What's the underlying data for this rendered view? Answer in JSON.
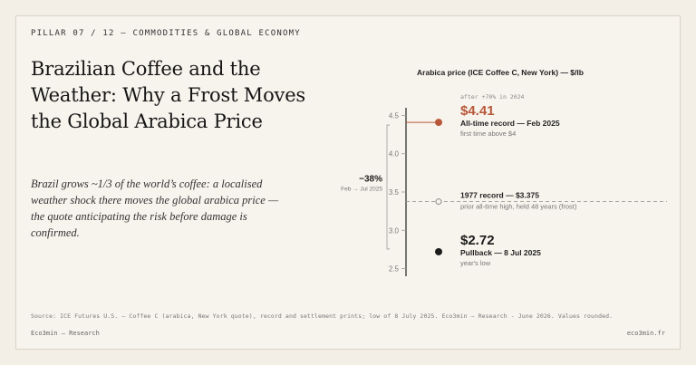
{
  "kicker": "PILLAR 07 / 12 — COMMODITIES & GLOBAL ECONOMY",
  "title": "Brazilian Coffee and the Weather: Why a Frost Moves the Global Arabica Price",
  "subtitle": "Brazil grows ~1/3 of the world’s coffee: a localised weather shock there moves the global arabica price — the quote anticipating the risk before damage is confirmed.",
  "source": "Source: ICE Futures U.S. — Coffee C (arabica, New York quote), record and settlement prints; low of 8 July 2025. Eco3min — Research - June 2026. Values rounded.",
  "footer": {
    "left": "Eco3min — Research",
    "right": "eco3min.fr"
  },
  "colors": {
    "accent": "#b8573a",
    "dark": "#1c1c1c",
    "bg": "#f7f4ed"
  },
  "chart_data": {
    "type": "scatter",
    "title": "Arabica price (ICE Coffee C, New York) — $/lb",
    "ylim": [
      2.4,
      4.6
    ],
    "yticks": [
      "2.5",
      "3.0",
      "3.5",
      "4.0",
      "4.5"
    ],
    "annotation_top": "after +70% in 2024",
    "points": [
      {
        "value": 4.41,
        "value_label": "$4.41",
        "label": "All-time record — Feb 2025",
        "note": "first time above $4",
        "color": "#b8573a",
        "style": "filled"
      },
      {
        "value": 3.375,
        "label": "1977 record — $3.375",
        "note": "prior all-time high, held 48 years (frost)",
        "color": "#8a8a8a",
        "style": "open"
      },
      {
        "value": 2.72,
        "value_label": "$2.72",
        "label": "Pullback — 8 Jul 2025",
        "note": "year's low",
        "color": "#1c1c1c",
        "style": "filled"
      }
    ],
    "change": {
      "percent": "−38%",
      "period": "Feb → Jul 2025",
      "from": 4.41,
      "to": 2.72
    }
  }
}
